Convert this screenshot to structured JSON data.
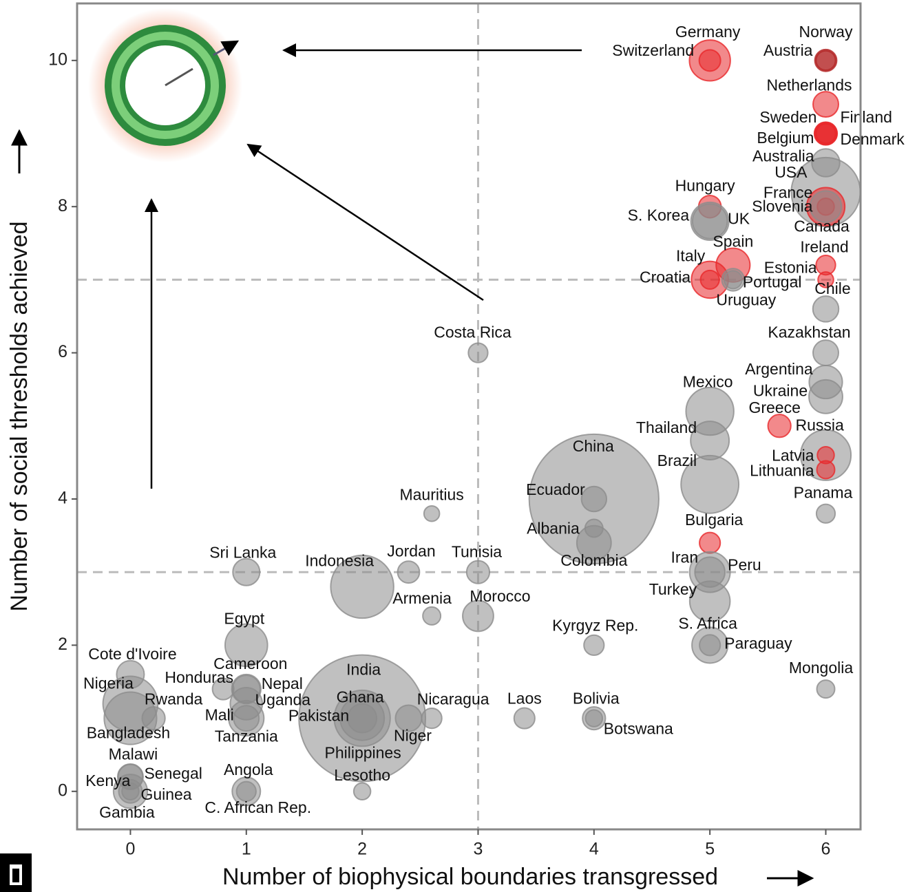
{
  "chart_data": {
    "type": "scatter",
    "x_label": "Number of biophysical boundaries transgressed",
    "y_label": "Number of social thresholds achieved",
    "xlim": [
      -0.46,
      6.3
    ],
    "ylim": [
      -0.52,
      10.78
    ],
    "xticks": [
      0,
      1,
      2,
      3,
      4,
      5,
      6
    ],
    "yticks": [
      0,
      2,
      4,
      6,
      8,
      10
    ],
    "vlines": [
      3
    ],
    "hlines": [
      3,
      7
    ],
    "points": [
      {
        "label": "China",
        "x": 4,
        "y": 4,
        "size": 1370,
        "color": "#8c8c8c"
      },
      {
        "label": "India",
        "x": 2,
        "y": 1,
        "size": 1300,
        "color": "#8c8c8c"
      },
      {
        "label": "USA",
        "x": 6,
        "y": 8.2,
        "size": 320,
        "color": "#8c8c8c"
      },
      {
        "label": "Indonesia",
        "x": 2,
        "y": 2.8,
        "size": 255,
        "color": "#8c8c8c"
      },
      {
        "label": "Brazil",
        "x": 5,
        "y": 4.2,
        "size": 205,
        "color": "#8c8c8c"
      },
      {
        "label": "Pakistan",
        "x": 2,
        "y": 1,
        "size": 190,
        "color": "#8c8c8c"
      },
      {
        "label": "Nigeria",
        "x": 0,
        "y": 1.2,
        "size": 180,
        "color": "#8c8c8c"
      },
      {
        "label": "Bangladesh",
        "x": 0,
        "y": 1,
        "size": 160,
        "color": "#8c8c8c"
      },
      {
        "label": "Russia",
        "x": 6,
        "y": 4.6,
        "size": 144,
        "color": "#8c8c8c"
      },
      {
        "label": "Mexico",
        "x": 5,
        "y": 5.2,
        "size": 125,
        "color": "#8c8c8c"
      },
      {
        "label": "Philippines",
        "x": 2,
        "y": 1,
        "size": 100,
        "color": "#8c8c8c"
      },
      {
        "label": "Egypt",
        "x": 1,
        "y": 2,
        "size": 90,
        "color": "#8c8c8c"
      },
      {
        "label": "Germany",
        "x": 5,
        "y": 10,
        "size": 81,
        "color": "#e8282b"
      },
      {
        "label": "Switzerland",
        "x": 5,
        "y": 10,
        "size": 8,
        "color": "#e8282b"
      },
      {
        "label": "Norway",
        "x": 6,
        "y": 10,
        "size": 5,
        "color": "#b22222"
      },
      {
        "label": "Austria",
        "x": 6,
        "y": 10,
        "size": 9,
        "color": "#b22222"
      },
      {
        "label": "Netherlands",
        "x": 6,
        "y": 9.4,
        "size": 17,
        "color": "#e8282b"
      },
      {
        "label": "Sweden",
        "x": 6,
        "y": 9,
        "size": 10,
        "color": "#e8282b"
      },
      {
        "label": "Finland",
        "x": 6,
        "y": 9,
        "size": 5,
        "color": "#e8282b"
      },
      {
        "label": "Belgium",
        "x": 6,
        "y": 9,
        "size": 11,
        "color": "#e8282b"
      },
      {
        "label": "Denmark",
        "x": 6,
        "y": 9,
        "size": 6,
        "color": "#e8282b"
      },
      {
        "label": "Australia",
        "x": 6,
        "y": 8.6,
        "size": 24,
        "color": "#8c8c8c"
      },
      {
        "label": "France",
        "x": 6,
        "y": 8,
        "size": 66,
        "color": "#e8282b"
      },
      {
        "label": "Slovenia",
        "x": 6,
        "y": 8,
        "size": 2,
        "color": "#e8282b"
      },
      {
        "label": "Canada",
        "x": 6,
        "y": 8,
        "size": 36,
        "color": "#8c8c8c"
      },
      {
        "label": "Hungary",
        "x": 5,
        "y": 8,
        "size": 10,
        "color": "#e8282b"
      },
      {
        "label": "S. Korea",
        "x": 5,
        "y": 7.8,
        "size": 50,
        "color": "#8c8c8c"
      },
      {
        "label": "UK",
        "x": 5,
        "y": 7.8,
        "size": 65,
        "color": "#8c8c8c"
      },
      {
        "label": "Spain",
        "x": 5.2,
        "y": 7.2,
        "size": 46,
        "color": "#e8282b"
      },
      {
        "label": "Italy",
        "x": 5,
        "y": 7,
        "size": 60,
        "color": "#e8282b"
      },
      {
        "label": "Croatia",
        "x": 5,
        "y": 7,
        "size": 4,
        "color": "#e8282b"
      },
      {
        "label": "Portugal",
        "x": 5.2,
        "y": 7,
        "size": 10,
        "color": "#8c8c8c"
      },
      {
        "label": "Uruguay",
        "x": 5.2,
        "y": 7,
        "size": 3,
        "color": "#8c8c8c"
      },
      {
        "label": "Ireland",
        "x": 6,
        "y": 7.2,
        "size": 5,
        "color": "#e8282b"
      },
      {
        "label": "Estonia",
        "x": 6,
        "y": 7,
        "size": 1,
        "color": "#e8282b"
      },
      {
        "label": "Chile",
        "x": 6,
        "y": 6.6,
        "size": 18,
        "color": "#8c8c8c"
      },
      {
        "label": "Kazakhstan",
        "x": 6,
        "y": 6,
        "size": 17,
        "color": "#8c8c8c"
      },
      {
        "label": "Argentina",
        "x": 6,
        "y": 5.6,
        "size": 43,
        "color": "#8c8c8c"
      },
      {
        "label": "Ukraine",
        "x": 6,
        "y": 5.4,
        "size": 45,
        "color": "#8c8c8c"
      },
      {
        "label": "Greece",
        "x": 5.6,
        "y": 5,
        "size": 11,
        "color": "#e8282b"
      },
      {
        "label": "Latvia",
        "x": 6,
        "y": 4.6,
        "size": 2,
        "color": "#e8282b"
      },
      {
        "label": "Lithuania",
        "x": 6,
        "y": 4.4,
        "size": 3,
        "color": "#e8282b"
      },
      {
        "label": "Panama",
        "x": 6,
        "y": 3.8,
        "size": 4,
        "color": "#8c8c8c"
      },
      {
        "label": "Thailand",
        "x": 5,
        "y": 4.8,
        "size": 68,
        "color": "#8c8c8c"
      },
      {
        "label": "Ecuador",
        "x": 4,
        "y": 4,
        "size": 16,
        "color": "#8c8c8c"
      },
      {
        "label": "Albania",
        "x": 4,
        "y": 3.6,
        "size": 3,
        "color": "#8c8c8c"
      },
      {
        "label": "Colombia",
        "x": 4,
        "y": 3.4,
        "size": 48,
        "color": "#8c8c8c"
      },
      {
        "label": "Bulgaria",
        "x": 5,
        "y": 3.4,
        "size": 7,
        "color": "#e8282b"
      },
      {
        "label": "Iran",
        "x": 5,
        "y": 3,
        "size": 79,
        "color": "#8c8c8c"
      },
      {
        "label": "Peru",
        "x": 5,
        "y": 3,
        "size": 31,
        "color": "#8c8c8c"
      },
      {
        "label": "Turkey",
        "x": 5,
        "y": 2.6,
        "size": 78,
        "color": "#8c8c8c"
      },
      {
        "label": "S. Africa",
        "x": 5,
        "y": 2,
        "size": 55,
        "color": "#8c8c8c"
      },
      {
        "label": "Paraguay",
        "x": 5,
        "y": 2,
        "size": 7,
        "color": "#8c8c8c"
      },
      {
        "label": "Mongolia",
        "x": 6,
        "y": 1.4,
        "size": 3,
        "color": "#8c8c8c"
      },
      {
        "label": "Kyrgyz Rep.",
        "x": 4,
        "y": 2,
        "size": 6,
        "color": "#8c8c8c"
      },
      {
        "label": "Costa Rica",
        "x": 3,
        "y": 6,
        "size": 5,
        "color": "#8c8c8c"
      },
      {
        "label": "Mauritius",
        "x": 2.6,
        "y": 3.8,
        "size": 1,
        "color": "#8c8c8c"
      },
      {
        "label": "Tunisia",
        "x": 3,
        "y": 3,
        "size": 11,
        "color": "#8c8c8c"
      },
      {
        "label": "Jordan",
        "x": 2.4,
        "y": 3,
        "size": 9,
        "color": "#8c8c8c"
      },
      {
        "label": "Sri Lanka",
        "x": 1,
        "y": 3,
        "size": 21,
        "color": "#8c8c8c"
      },
      {
        "label": "Armenia",
        "x": 2.6,
        "y": 2.4,
        "size": 3,
        "color": "#8c8c8c"
      },
      {
        "label": "Morocco",
        "x": 3,
        "y": 2.4,
        "size": 34,
        "color": "#8c8c8c"
      },
      {
        "label": "Cote d'Ivoire",
        "x": 0,
        "y": 1.6,
        "size": 23,
        "color": "#8c8c8c"
      },
      {
        "label": "Honduras",
        "x": 0.8,
        "y": 1.4,
        "size": 8,
        "color": "#8c8c8c"
      },
      {
        "label": "Cameroon",
        "x": 1,
        "y": 1.4,
        "size": 23,
        "color": "#8c8c8c"
      },
      {
        "label": "Nepal",
        "x": 1,
        "y": 1.4,
        "size": 28,
        "color": "#8c8c8c"
      },
      {
        "label": "Uganda",
        "x": 1,
        "y": 1.2,
        "size": 39,
        "color": "#8c8c8c"
      },
      {
        "label": "Rwanda",
        "x": 0.2,
        "y": 1,
        "size": 11,
        "color": "#8c8c8c"
      },
      {
        "label": "Mali",
        "x": 1,
        "y": 1,
        "size": 17,
        "color": "#8c8c8c"
      },
      {
        "label": "Tanzania",
        "x": 1,
        "y": 1,
        "size": 52,
        "color": "#8c8c8c"
      },
      {
        "label": "Ghana",
        "x": 2,
        "y": 1,
        "size": 27,
        "color": "#8c8c8c"
      },
      {
        "label": "Nicaragua",
        "x": 2.6,
        "y": 1,
        "size": 6,
        "color": "#8c8c8c"
      },
      {
        "label": "Niger",
        "x": 2.4,
        "y": 1,
        "size": 19,
        "color": "#8c8c8c"
      },
      {
        "label": "Laos",
        "x": 3.4,
        "y": 1,
        "size": 7,
        "color": "#8c8c8c"
      },
      {
        "label": "Bolivia",
        "x": 4,
        "y": 1,
        "size": 11,
        "color": "#8c8c8c"
      },
      {
        "label": "Botswana",
        "x": 4,
        "y": 1,
        "size": 2,
        "color": "#8c8c8c"
      },
      {
        "label": "Malawi",
        "x": 0,
        "y": 0.2,
        "size": 17,
        "color": "#8c8c8c"
      },
      {
        "label": "Senegal",
        "x": 0,
        "y": 0.2,
        "size": 15,
        "color": "#8c8c8c"
      },
      {
        "label": "Kenya",
        "x": 0,
        "y": 0,
        "size": 46,
        "color": "#8c8c8c"
      },
      {
        "label": "Guinea",
        "x": 0,
        "y": 0,
        "size": 12,
        "color": "#8c8c8c"
      },
      {
        "label": "Gambia",
        "x": 0,
        "y": 0,
        "size": 2,
        "color": "#8c8c8c"
      },
      {
        "label": "Angola",
        "x": 1,
        "y": 0,
        "size": 25,
        "color": "#8c8c8c"
      },
      {
        "label": "C. African Rep.",
        "x": 1,
        "y": 0,
        "size": 5,
        "color": "#8c8c8c"
      },
      {
        "label": "Lesotho",
        "x": 2,
        "y": 0,
        "size": 2,
        "color": "#8c8c8c"
      }
    ]
  }
}
